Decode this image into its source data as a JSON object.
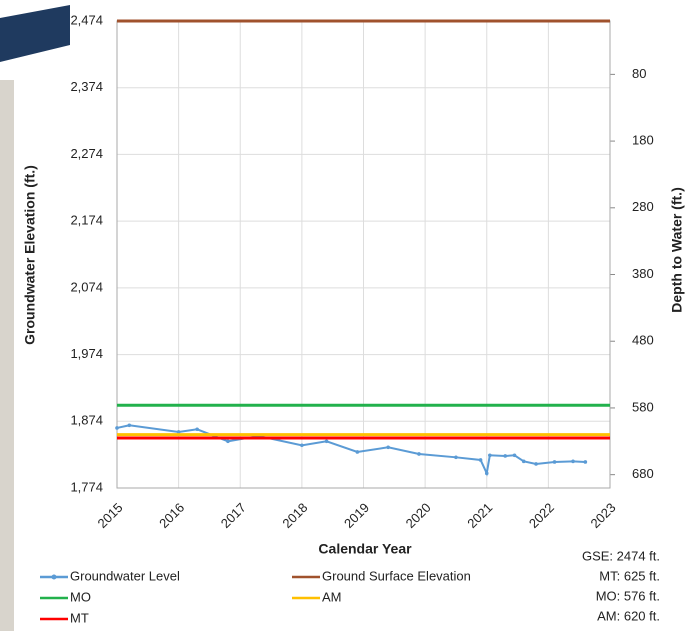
{
  "chart_data": {
    "type": "line",
    "y_label": "Groundwater Elevation (ft.)",
    "y2_label": "Depth to Water (ft.)",
    "x_label": "Calendar Year",
    "xlim": [
      2015,
      2023
    ],
    "xticks": [
      2015,
      2016,
      2017,
      2018,
      2019,
      2020,
      2021,
      2022,
      2023
    ],
    "ylim": [
      1774,
      2474
    ],
    "yticks": [
      {
        "value": 1774,
        "label": "1,774"
      },
      {
        "value": 1874,
        "label": "1,874"
      },
      {
        "value": 1974,
        "label": "1,974"
      },
      {
        "value": 2074,
        "label": "2,074"
      },
      {
        "value": 2174,
        "label": "2,174"
      },
      {
        "value": 2274,
        "label": "2,274"
      },
      {
        "value": 2374,
        "label": "2,374"
      },
      {
        "value": 2474,
        "label": "2,474"
      }
    ],
    "y2lim": [
      700,
      0
    ],
    "y2ticks": [
      80,
      180,
      280,
      380,
      480,
      580,
      680
    ],
    "grid": true,
    "series": [
      {
        "name": "Groundwater Level",
        "color": "#5b9bd5",
        "marker": true,
        "x": [
          2015.0,
          2015.2,
          2016.0,
          2016.3,
          2016.8,
          2017.3,
          2018.0,
          2018.4,
          2018.9,
          2019.4,
          2019.9,
          2020.5,
          2020.9,
          2021.0,
          2021.05,
          2021.3,
          2021.45,
          2021.6,
          2021.8,
          2022.1,
          2022.4,
          2022.6
        ],
        "values": [
          1864,
          1868,
          1858,
          1862,
          1844,
          1852,
          1838,
          1844,
          1828,
          1835,
          1825,
          1820,
          1816,
          1796,
          1823,
          1822,
          1823,
          1814,
          1810,
          1813,
          1814,
          1813
        ]
      },
      {
        "name": "Ground Surface Elevation",
        "color": "#a0522d",
        "x": [
          2015,
          2023
        ],
        "values": [
          2474,
          2474
        ]
      },
      {
        "name": "MO",
        "color": "#22b14c",
        "x": [
          2015,
          2023
        ],
        "values": [
          1898,
          1898
        ]
      },
      {
        "name": "AM",
        "color": "#ffc000",
        "x": [
          2015,
          2023
        ],
        "values": [
          1854,
          1854
        ]
      },
      {
        "name": "MT",
        "color": "#ff0000",
        "x": [
          2015,
          2023
        ],
        "values": [
          1849,
          1849
        ]
      }
    ],
    "annotations": [
      "GSE: 2474 ft.",
      "MT: 625 ft.",
      "MO: 576 ft.",
      "AM: 620 ft."
    ]
  }
}
